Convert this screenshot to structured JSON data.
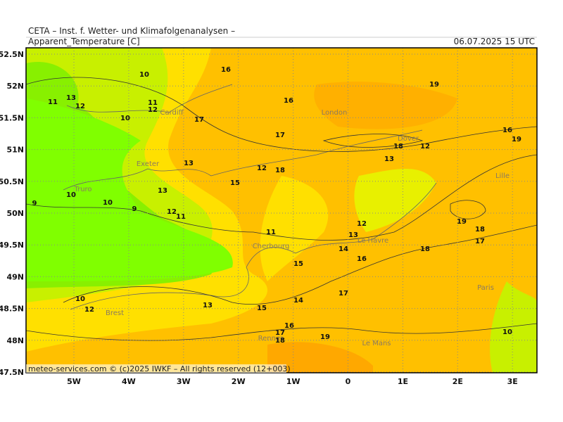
{
  "header": {
    "institute": "CETA – Inst. f. Wetter- und Klimafolgenanalysen –",
    "parameter": "Apparent_Temperature [C]",
    "valid_time": "06.07.2025 15 UTC"
  },
  "axes": {
    "lat_labels": [
      "52.5N",
      "52N",
      "51.5N",
      "51N",
      "50.5N",
      "50N",
      "49.5N",
      "49N",
      "48.5N",
      "48N",
      "47.5N"
    ],
    "lon_labels": [
      "5W",
      "4W",
      "3W",
      "2W",
      "1W",
      "0",
      "1E",
      "2E",
      "3E"
    ]
  },
  "cities": [
    "Cardiff",
    "London",
    "Dover",
    "Exeter",
    "Truro",
    "Lille",
    "Le Havre",
    "Cherbourg",
    "Brest",
    "Rennes",
    "Le Mans",
    "Paris"
  ],
  "contour_labels": [
    10,
    16,
    13,
    11,
    12,
    11,
    12,
    10,
    17,
    16,
    19,
    17,
    16,
    19,
    18,
    12,
    13,
    13,
    12,
    18,
    15,
    13,
    9,
    10,
    10,
    9,
    12,
    11,
    19,
    18,
    17,
    12,
    13,
    11,
    14,
    16,
    18,
    15,
    17,
    14,
    15,
    10,
    12,
    13,
    16,
    17,
    18,
    19,
    10
  ],
  "footer": "meteo-services.com © (c)2025 IWKF – All rights reserved (12+003)"
}
